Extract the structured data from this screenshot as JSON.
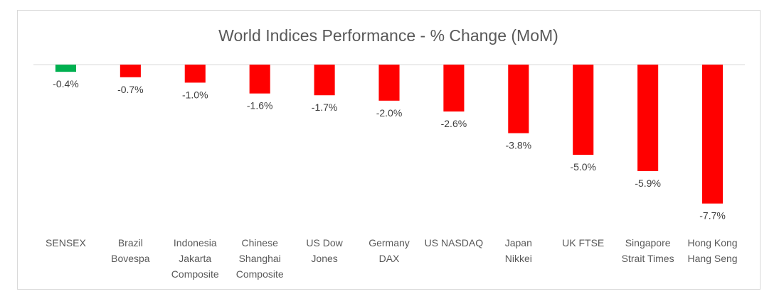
{
  "chart_data": {
    "type": "bar",
    "title": "World Indices Performance - % Change (MoM)",
    "xlabel": "",
    "ylabel": "",
    "ylim": [
      -8.5,
      0
    ],
    "grid": false,
    "legend": "none",
    "categories": [
      [
        "SENSEX"
      ],
      [
        "Brazil",
        "Bovespa"
      ],
      [
        "Indonesia",
        "Jakarta",
        "Composite"
      ],
      [
        "Chinese",
        "Shanghai",
        "Composite"
      ],
      [
        "US Dow",
        "Jones"
      ],
      [
        "Germany",
        "DAX"
      ],
      [
        "US NASDAQ"
      ],
      [
        "Japan",
        "Nikkei"
      ],
      [
        "UK FTSE"
      ],
      [
        "Singapore",
        "Strait Times"
      ],
      [
        "Hong Kong",
        "Hang Seng"
      ]
    ],
    "values": [
      -0.4,
      -0.7,
      -1.0,
      -1.6,
      -1.7,
      -2.0,
      -2.6,
      -3.8,
      -5.0,
      -5.9,
      -7.7
    ],
    "data_labels": [
      "-0.4%",
      "-0.7%",
      "-1.0%",
      "-1.6%",
      "-1.7%",
      "-2.0%",
      "-2.6%",
      "-3.8%",
      "-5.0%",
      "-5.9%",
      "-7.7%"
    ],
    "colors": {
      "highlight": "#00b050",
      "bar": "#ff0000",
      "axis": "#d9d9d9"
    },
    "highlight_index": 0
  }
}
